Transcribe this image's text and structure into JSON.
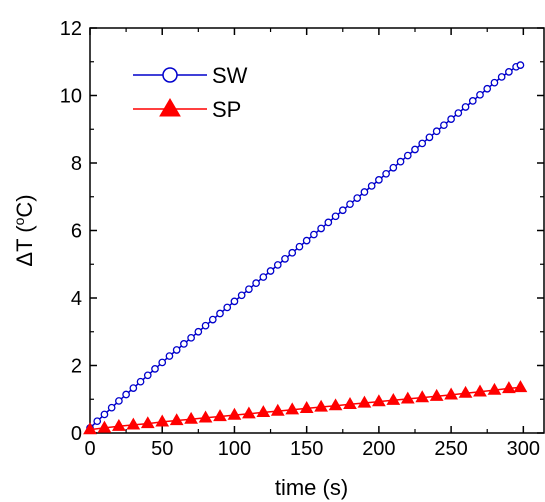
{
  "chart_data": {
    "type": "scatter",
    "xlabel": "time (s)",
    "ylabel_prefix": "ΔT (",
    "ylabel_sup": "o",
    "ylabel_suffix": "C)",
    "xlim": [
      0,
      315
    ],
    "ylim": [
      0,
      12
    ],
    "xticks": [
      0,
      50,
      100,
      150,
      200,
      250,
      300
    ],
    "yticks": [
      0,
      2,
      4,
      6,
      8,
      10,
      12
    ],
    "grid": false,
    "legend_position": "top-left",
    "series": [
      {
        "name": "SW",
        "color": "#0000cc",
        "marker": "open-circle",
        "x": [
          0,
          5,
          10,
          15,
          20,
          25,
          30,
          35,
          40,
          45,
          50,
          55,
          60,
          65,
          70,
          75,
          80,
          85,
          90,
          95,
          100,
          105,
          110,
          115,
          120,
          125,
          130,
          135,
          140,
          145,
          150,
          155,
          160,
          165,
          170,
          175,
          180,
          185,
          190,
          195,
          200,
          205,
          210,
          215,
          220,
          225,
          230,
          235,
          240,
          245,
          250,
          255,
          260,
          265,
          270,
          275,
          280,
          285,
          290,
          295,
          298
        ],
        "y": [
          0.15,
          0.35,
          0.55,
          0.75,
          0.95,
          1.14,
          1.33,
          1.52,
          1.71,
          1.9,
          2.09,
          2.28,
          2.46,
          2.64,
          2.82,
          3.0,
          3.18,
          3.36,
          3.54,
          3.72,
          3.9,
          4.08,
          4.26,
          4.44,
          4.62,
          4.8,
          4.98,
          5.16,
          5.34,
          5.52,
          5.7,
          5.88,
          6.06,
          6.24,
          6.42,
          6.6,
          6.78,
          6.96,
          7.14,
          7.32,
          7.5,
          7.68,
          7.86,
          8.04,
          8.22,
          8.4,
          8.58,
          8.76,
          8.94,
          9.12,
          9.3,
          9.48,
          9.66,
          9.84,
          10.02,
          10.2,
          10.38,
          10.55,
          10.7,
          10.85,
          10.9
        ]
      },
      {
        "name": "SP",
        "color": "#ff0000",
        "marker": "filled-triangle",
        "x": [
          0,
          10,
          20,
          30,
          40,
          50,
          60,
          70,
          80,
          90,
          100,
          110,
          120,
          130,
          140,
          150,
          160,
          170,
          180,
          190,
          200,
          210,
          220,
          230,
          240,
          250,
          260,
          270,
          280,
          290,
          298
        ],
        "y": [
          0.1,
          0.15,
          0.2,
          0.24,
          0.28,
          0.33,
          0.37,
          0.41,
          0.45,
          0.49,
          0.53,
          0.57,
          0.61,
          0.65,
          0.69,
          0.73,
          0.77,
          0.81,
          0.85,
          0.89,
          0.93,
          0.97,
          1.01,
          1.05,
          1.09,
          1.13,
          1.18,
          1.22,
          1.27,
          1.32,
          1.35
        ]
      }
    ]
  }
}
